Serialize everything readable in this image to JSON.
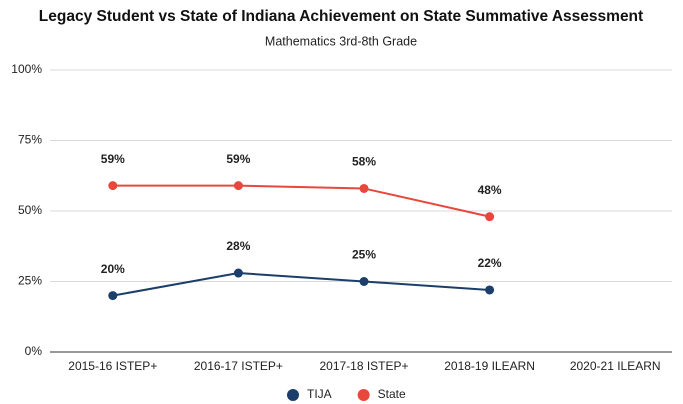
{
  "chart_data": {
    "type": "line",
    "title": "Legacy Student vs State of Indiana Achievement on State Summative Assessment",
    "subtitle": "Mathematics 3rd-8th Grade",
    "categories": [
      "2015-16 ISTEP+",
      "2016-17 ISTEP+",
      "2017-18 ISTEP+",
      "2018-19 ILEARN",
      "2020-21 ILEARN"
    ],
    "series": [
      {
        "name": "TIJA",
        "color": "#1b3e6a",
        "values": [
          20,
          28,
          25,
          22,
          null
        ],
        "value_labels": [
          "20%",
          "28%",
          "25%",
          "22%",
          null
        ]
      },
      {
        "name": "State",
        "color": "#e8473c",
        "values": [
          59,
          59,
          58,
          48,
          null
        ],
        "value_labels": [
          "59%",
          "59%",
          "58%",
          "48%",
          null
        ]
      }
    ],
    "ylim": [
      0,
      100
    ],
    "yticks": [
      {
        "value": 0,
        "label": "0%"
      },
      {
        "value": 25,
        "label": "25%"
      },
      {
        "value": 50,
        "label": "50%"
      },
      {
        "value": 75,
        "label": "75%"
      },
      {
        "value": 100,
        "label": "100%"
      }
    ],
    "grid": true,
    "legend": "bottom"
  }
}
